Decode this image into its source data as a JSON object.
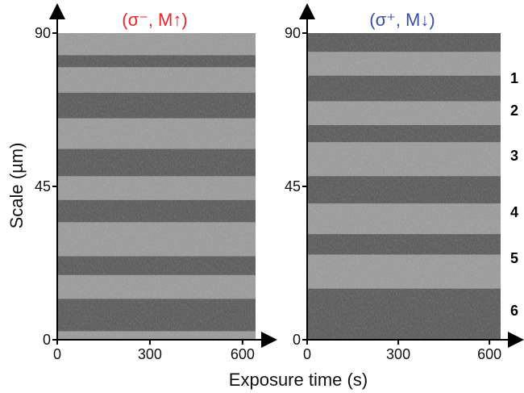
{
  "chart_data": [
    {
      "type": "heatmap",
      "title": "(σ⁻, M↑)",
      "title_color": "#e8262c",
      "xlabel": "Exposure time (s)",
      "ylabel": "Scale (µm)",
      "xlim": [
        0,
        650
      ],
      "ylim": [
        0,
        90
      ],
      "x_ticks": [
        "0",
        "300",
        "600"
      ],
      "y_ticks": [
        "0",
        "45",
        "90"
      ],
      "colormap": "grayscale",
      "bands": [
        {
          "y_top": 83.5,
          "y_bottom": 80.0,
          "tone": "dark"
        },
        {
          "y_top": 72.5,
          "y_bottom": 65.0,
          "tone": "dark"
        },
        {
          "y_top": 56.0,
          "y_bottom": 48.0,
          "tone": "dark"
        },
        {
          "y_top": 41.0,
          "y_bottom": 34.5,
          "tone": "dark"
        },
        {
          "y_top": 24.5,
          "y_bottom": 19.0,
          "tone": "dark"
        },
        {
          "y_top": 12.0,
          "y_bottom": 2.5,
          "tone": "dark"
        }
      ]
    },
    {
      "type": "heatmap",
      "title": "(σ⁺, M↓)",
      "title_color": "#3b4fa0",
      "xlabel": "Exposure time (s)",
      "ylabel": "",
      "xlim": [
        0,
        650
      ],
      "ylim": [
        0,
        90
      ],
      "x_ticks": [
        "0",
        "300",
        "600"
      ],
      "y_ticks": [
        "0",
        "45",
        "90"
      ],
      "colormap": "grayscale",
      "bands": [
        {
          "y_top": 90.0,
          "y_bottom": 84.5,
          "tone": "dark"
        },
        {
          "y_top": 77.5,
          "y_bottom": 70.0,
          "tone": "dark"
        },
        {
          "y_top": 63.0,
          "y_bottom": 58.0,
          "tone": "dark"
        },
        {
          "y_top": 48.0,
          "y_bottom": 40.0,
          "tone": "dark"
        },
        {
          "y_top": 31.0,
          "y_bottom": 25.0,
          "tone": "dark"
        },
        {
          "y_top": 15.0,
          "y_bottom": 0.0,
          "tone": "dark"
        }
      ],
      "strip_labels": [
        "1",
        "2",
        "3",
        "4",
        "5",
        "6"
      ]
    }
  ]
}
